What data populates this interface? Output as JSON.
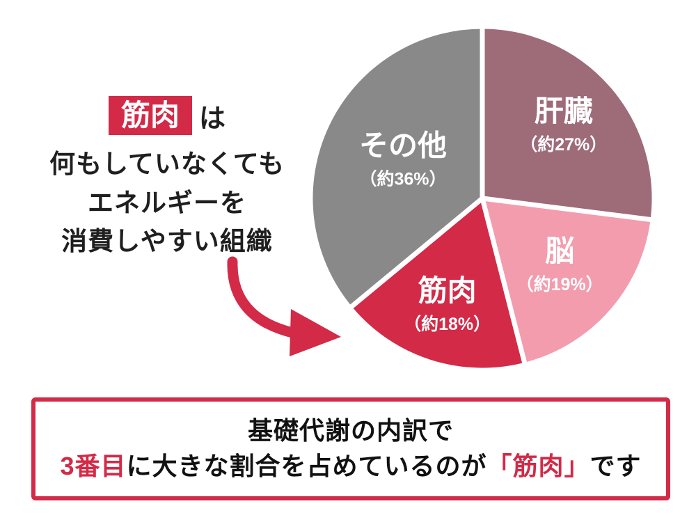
{
  "colors": {
    "accent_red": "#d22a47",
    "text_dark": "#1f1f1f",
    "label_white": "#ffffff"
  },
  "left_note": {
    "highlight": "筋肉",
    "suffix": "は",
    "lines": [
      "何もしていなくても",
      "エネルギーを",
      "消費しやすい組織"
    ]
  },
  "chart_data": {
    "type": "pie",
    "start_angle_deg": -90,
    "direction": "clockwise",
    "legend": "none",
    "label_color": "#ffffff",
    "slices": [
      {
        "key": "liver",
        "label": "肝臓",
        "pct_label": "（約27%）",
        "value": 27,
        "color": "#9e6b79",
        "label_r": 0.63
      },
      {
        "key": "brain",
        "label": "脳",
        "pct_label": "（約19%）",
        "value": 19,
        "color": "#f39cae",
        "label_r": 0.6
      },
      {
        "key": "muscle",
        "label": "筋肉",
        "pct_label": "（約18%）",
        "value": 18,
        "color": "#d22a47",
        "label_r": 0.66
      },
      {
        "key": "other",
        "label": "その他",
        "pct_label": "（約36%）",
        "value": 36,
        "color": "#898989",
        "label_r": 0.51
      }
    ]
  },
  "caption": {
    "line1": "基礎代謝の内訳で",
    "line2_parts": [
      {
        "text": "3番目",
        "emphasis": true
      },
      {
        "text": "に大きな割合を占めているのが",
        "emphasis": false
      },
      {
        "text": "「筋肉」",
        "emphasis": true
      },
      {
        "text": "です",
        "emphasis": false
      }
    ]
  }
}
